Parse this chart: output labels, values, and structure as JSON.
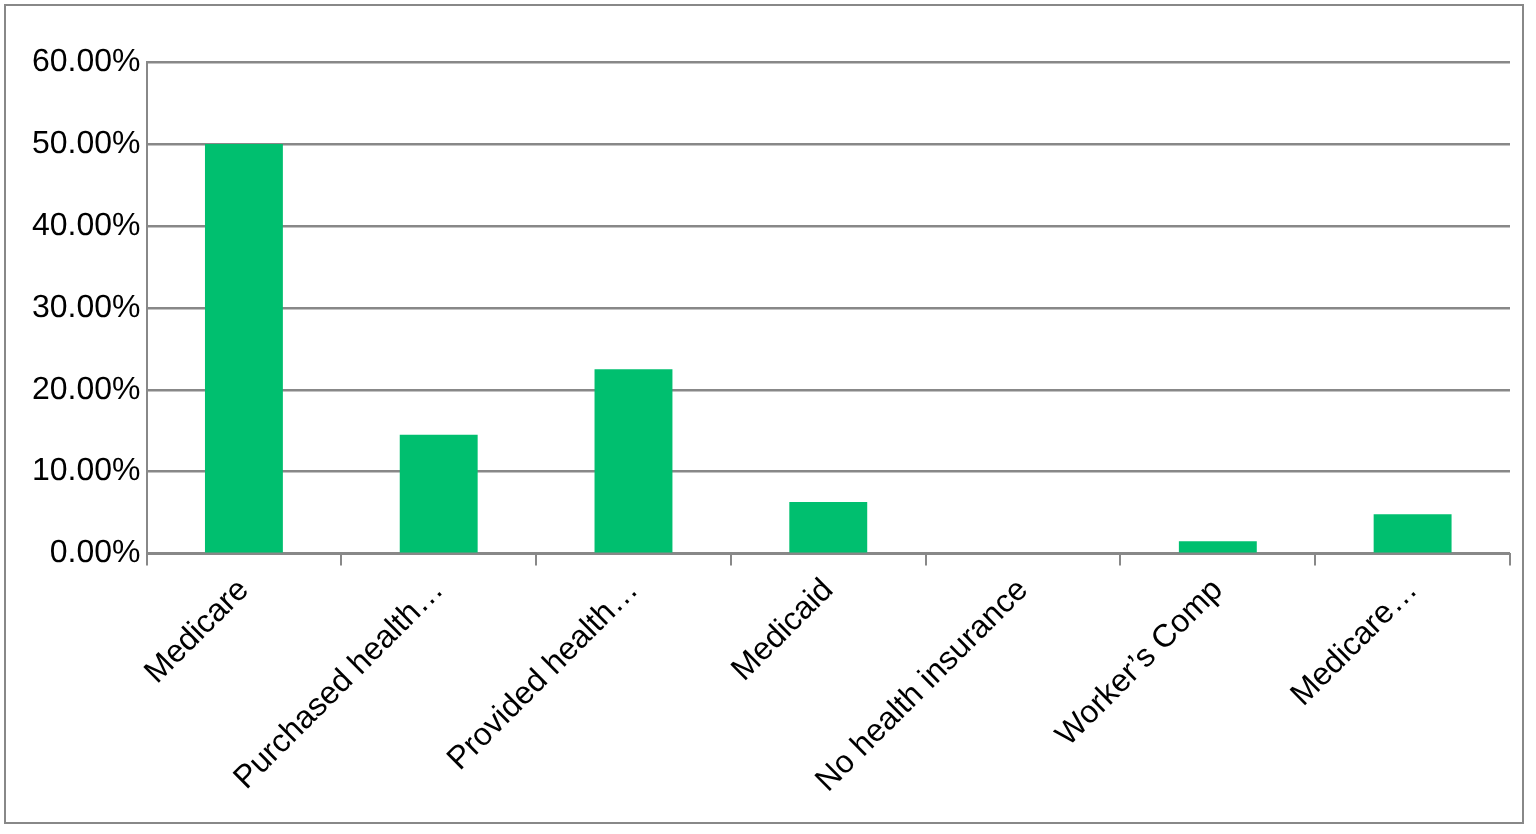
{
  "chart_data": {
    "type": "bar",
    "categories": [
      "Medicare",
      "Purchased health…",
      "Provided health…",
      "Medicaid",
      "No health insurance",
      "Worker’s Comp",
      "Medicare…"
    ],
    "values": [
      50,
      14.5,
      22.5,
      6.3,
      0,
      1.5,
      4.8
    ],
    "color": "#00bf6f",
    "ylim": [
      0,
      60
    ],
    "yticks": [
      {
        "value": 0,
        "label": "0.00%"
      },
      {
        "value": 10,
        "label": "10.00%"
      },
      {
        "value": 20,
        "label": "20.00%"
      },
      {
        "value": 30,
        "label": "30.00%"
      },
      {
        "value": 40,
        "label": "40.00%"
      },
      {
        "value": 50,
        "label": "50.00%"
      },
      {
        "value": 60,
        "label": "60.00%"
      }
    ],
    "grid": "y",
    "legend": false
  }
}
